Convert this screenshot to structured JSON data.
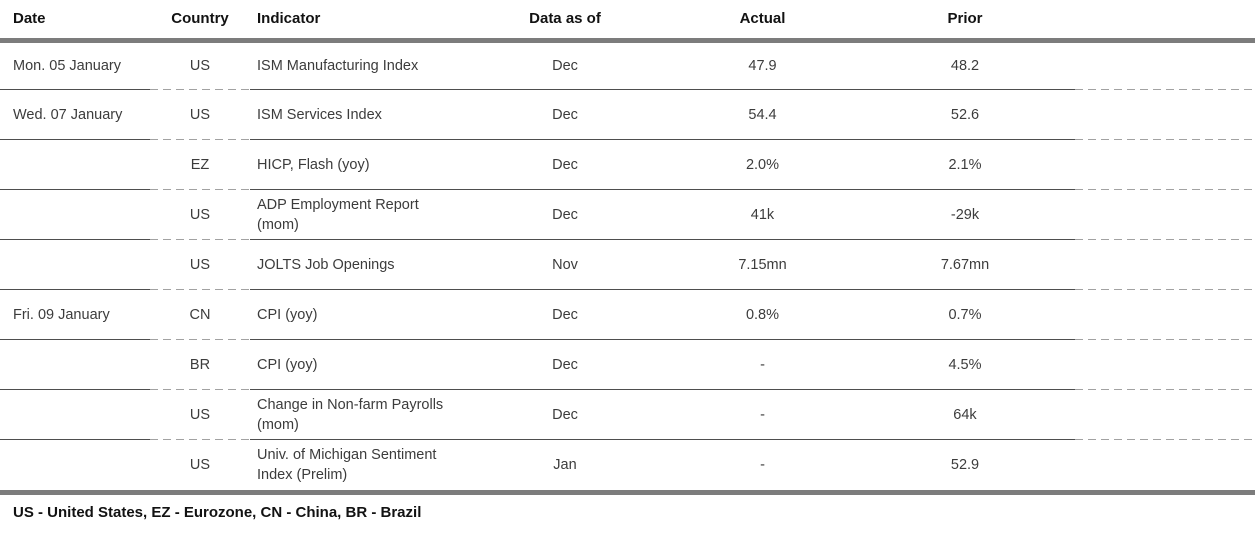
{
  "colors": {
    "bar_gray": "#7c7c7c",
    "line_solid": "#4e4e4e",
    "line_dashed": "#a2a2a2",
    "text_header": "#121212",
    "text_body": "#3c3c3c"
  },
  "table": {
    "columns": [
      "Date",
      "Country",
      "Indicator",
      "Data as of",
      "Actual",
      "Prior"
    ],
    "rows": [
      {
        "date": "Mon. 05 January",
        "country": "US",
        "indicator": "ISM Manufacturing Index",
        "data_as_of": "Dec",
        "actual": "47.9",
        "prior": "48.2"
      },
      {
        "date": "Wed. 07 January",
        "country": "US",
        "indicator": "ISM Services Index",
        "data_as_of": "Dec",
        "actual": "54.4",
        "prior": "52.6"
      },
      {
        "date": "",
        "country": "EZ",
        "indicator": "HICP, Flash (yoy)",
        "data_as_of": "Dec",
        "actual": "2.0%",
        "prior": "2.1%"
      },
      {
        "date": "",
        "country": "US",
        "indicator": "ADP Employment Report (mom)",
        "data_as_of": "Dec",
        "actual": "41k",
        "prior": "-29k"
      },
      {
        "date": "",
        "country": "US",
        "indicator": "JOLTS Job Openings",
        "data_as_of": "Nov",
        "actual": "7.15mn",
        "prior": "7.67mn"
      },
      {
        "date": "Fri. 09 January",
        "country": "CN",
        "indicator": "CPI (yoy)",
        "data_as_of": "Dec",
        "actual": "0.8%",
        "prior": "0.7%"
      },
      {
        "date": "",
        "country": "BR",
        "indicator": "CPI (yoy)",
        "data_as_of": "Dec",
        "actual": "-",
        "prior": "4.5%"
      },
      {
        "date": "",
        "country": "US",
        "indicator": "Change in Non-farm Payrolls (mom)",
        "data_as_of": "Dec",
        "actual": "-",
        "prior": "64k"
      },
      {
        "date": "",
        "country": "US",
        "indicator": "Univ. of Michigan Sentiment Index (Prelim)",
        "data_as_of": "Jan",
        "actual": "-",
        "prior": "52.9"
      }
    ]
  },
  "footer": {
    "legend": "US - United States, EZ - Eurozone, CN - China, BR - Brazil"
  }
}
